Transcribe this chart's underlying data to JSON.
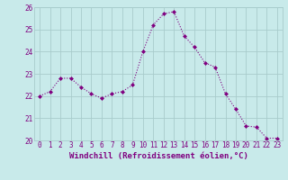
{
  "x": [
    0,
    1,
    2,
    3,
    4,
    5,
    6,
    7,
    8,
    9,
    10,
    11,
    12,
    13,
    14,
    15,
    16,
    17,
    18,
    19,
    20,
    21,
    22,
    23
  ],
  "y": [
    22.0,
    22.2,
    22.8,
    22.8,
    22.4,
    22.1,
    21.9,
    22.1,
    22.2,
    22.5,
    24.0,
    25.2,
    25.7,
    25.8,
    24.7,
    24.2,
    23.5,
    23.3,
    22.1,
    21.4,
    20.65,
    20.6,
    20.1,
    20.1
  ],
  "line_color": "#800080",
  "marker": "D",
  "marker_size": 2,
  "bg_color": "#c8eaea",
  "grid_color": "#a8cccc",
  "xlabel": "Windchill (Refroidissement éolien,°C)",
  "xlabel_fontsize": 6.5,
  "ylim": [
    20,
    26
  ],
  "xlim": [
    -0.5,
    23.5
  ],
  "yticks": [
    20,
    21,
    22,
    23,
    24,
    25,
    26
  ],
  "xticks": [
    0,
    1,
    2,
    3,
    4,
    5,
    6,
    7,
    8,
    9,
    10,
    11,
    12,
    13,
    14,
    15,
    16,
    17,
    18,
    19,
    20,
    21,
    22,
    23
  ],
  "tick_fontsize": 5.5
}
